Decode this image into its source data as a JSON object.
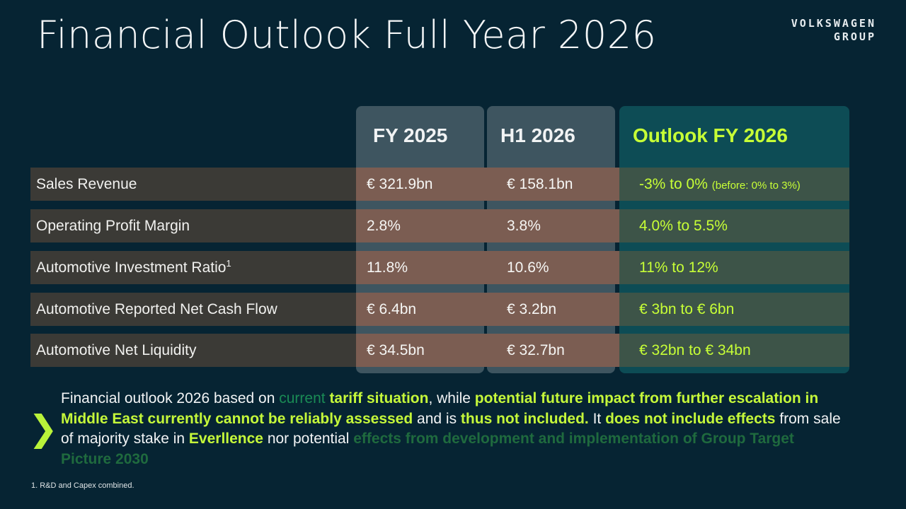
{
  "title": "Financial Outlook Full Year 2026",
  "logo": {
    "line1": "VOLKSWAGEN",
    "line2": "GROUP"
  },
  "columns": {
    "fy2025": "FY 2025",
    "h12026": "H1 2026",
    "outlook": "Outlook FY 2026"
  },
  "rows": [
    {
      "label": "Sales Revenue",
      "fy2025": "€ 321.9bn",
      "h12026": "€ 158.1bn",
      "outlook": "-3% to 0%",
      "outlook_note": "(before: 0% to 3%)"
    },
    {
      "label": "Operating Profit Margin",
      "fy2025": "2.8%",
      "h12026": "3.8%",
      "outlook": "4.0% to 5.5%"
    },
    {
      "label": "Automotive Investment Ratio",
      "label_sup": "1",
      "fy2025": "11.8%",
      "h12026": "10.6%",
      "outlook": "11% to 12%"
    },
    {
      "label": "Automotive Reported Net Cash Flow",
      "fy2025": "€ 6.4bn",
      "h12026": "€ 3.2bn",
      "outlook": "€ 3bn to € 6bn"
    },
    {
      "label": "Automotive Net Liquidity",
      "fy2025": "€ 34.5bn",
      "h12026": "€ 32.7bn",
      "outlook": "€ 32bn to € 34bn"
    }
  ],
  "note": {
    "p1": "Financial outlook 2026 based on ",
    "p2": "current",
    "p3": " ",
    "p4": "tariff situation",
    "p5": ", while ",
    "p6": "potential future impact from further escalation in Middle East currently cannot be reliably assessed",
    "p7": " and is ",
    "p8": "thus not included.",
    "p9": " It ",
    "p10": "does not include effects",
    "p11": " from sale of majority stake in ",
    "p12": "Everllence",
    "p13": " nor potential ",
    "p14": "effects from development and implementation of Group Target Picture 2030"
  },
  "chevron": "❯",
  "footnote": "1. R&D and Capex combined.",
  "colors": {
    "background": "#062433",
    "accent": "#c7ff36",
    "outlook_column": "#0d4c55",
    "value_column": "#3e5560"
  }
}
